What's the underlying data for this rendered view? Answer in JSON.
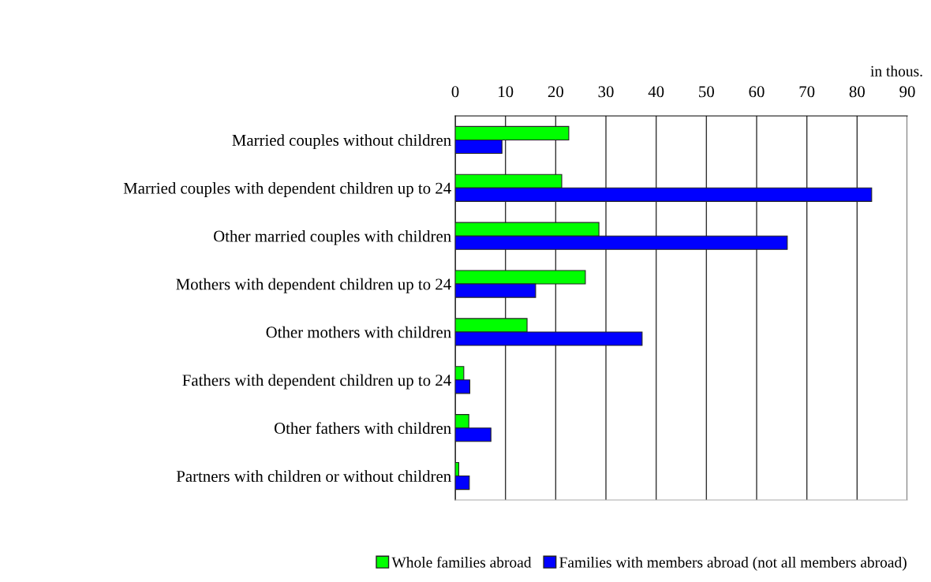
{
  "chart_data": {
    "type": "bar",
    "orientation": "horizontal",
    "categories": [
      "Married couples without children",
      "Married couples with dependent children up to 24",
      "Other married couples with children",
      "Mothers with dependent children up to 24",
      "Other mothers with children",
      "Fathers with dependent children up to 24",
      "Other fathers with children",
      "Partners with children or without children"
    ],
    "series": [
      {
        "name": "Whole families abroad",
        "color": "#00ff00",
        "values": [
          22.6,
          21.2,
          28.6,
          25.9,
          14.3,
          1.7,
          2.7,
          0.7
        ]
      },
      {
        "name": "Families with members abroad (not all members abroad)",
        "color": "#0000ff",
        "values": [
          9.3,
          82.9,
          66.1,
          16.0,
          37.2,
          2.9,
          7.1,
          2.8
        ]
      }
    ],
    "xlim": [
      0,
      90
    ],
    "xticks": [
      0,
      10,
      20,
      30,
      40,
      50,
      60,
      70,
      80,
      90
    ],
    "grid": "x",
    "legend": "bottom",
    "annotations": [
      "in thous."
    ]
  }
}
